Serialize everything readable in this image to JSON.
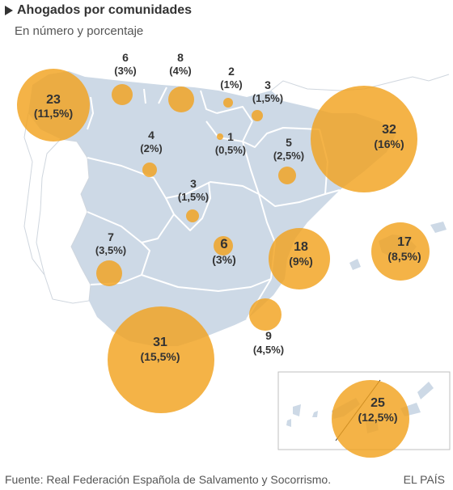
{
  "title": "Ahogados por comunidades",
  "subtitle": "En número y porcentaje",
  "source": "Fuente: Real Federación Española de Salvamento y Socorrismo.",
  "brand": "EL PAÍS",
  "colors": {
    "land": "#cdd9e6",
    "border": "#ffffff",
    "bubble": "#f1a21e",
    "text": "#333333"
  },
  "regions": [
    {
      "id": "galicia",
      "count": "23",
      "pct": "(11,5%)",
      "value": 23
    },
    {
      "id": "asturias",
      "count": "6",
      "pct": "(3%)",
      "value": 6
    },
    {
      "id": "cantabria",
      "count": "8",
      "pct": "(4%)",
      "value": 8
    },
    {
      "id": "pais-vasco",
      "count": "2",
      "pct": "(1%)",
      "value": 2
    },
    {
      "id": "navarra",
      "count": "3",
      "pct": "(1,5%)",
      "value": 3
    },
    {
      "id": "la-rioja",
      "count": "1",
      "pct": "(0,5%)",
      "value": 1
    },
    {
      "id": "castilla-leon",
      "count": "4",
      "pct": "(2%)",
      "value": 4
    },
    {
      "id": "aragon",
      "count": "5",
      "pct": "(2,5%)",
      "value": 5
    },
    {
      "id": "cataluna",
      "count": "32",
      "pct": "(16%)",
      "value": 32
    },
    {
      "id": "madrid",
      "count": "3",
      "pct": "(1,5%)",
      "value": 3
    },
    {
      "id": "castilla-la-mancha",
      "count": "6",
      "pct": "(3%)",
      "value": 6
    },
    {
      "id": "extremadura",
      "count": "7",
      "pct": "(3,5%)",
      "value": 7
    },
    {
      "id": "comunidad-valenciana",
      "count": "18",
      "pct": "(9%)",
      "value": 18
    },
    {
      "id": "baleares",
      "count": "17",
      "pct": "(8,5%)",
      "value": 17
    },
    {
      "id": "murcia",
      "count": "9",
      "pct": "(4,5%)",
      "value": 9
    },
    {
      "id": "andalucia",
      "count": "31",
      "pct": "(15,5%)",
      "value": 31
    },
    {
      "id": "canarias",
      "count": "25",
      "pct": "(12,5%)",
      "value": 25
    }
  ]
}
